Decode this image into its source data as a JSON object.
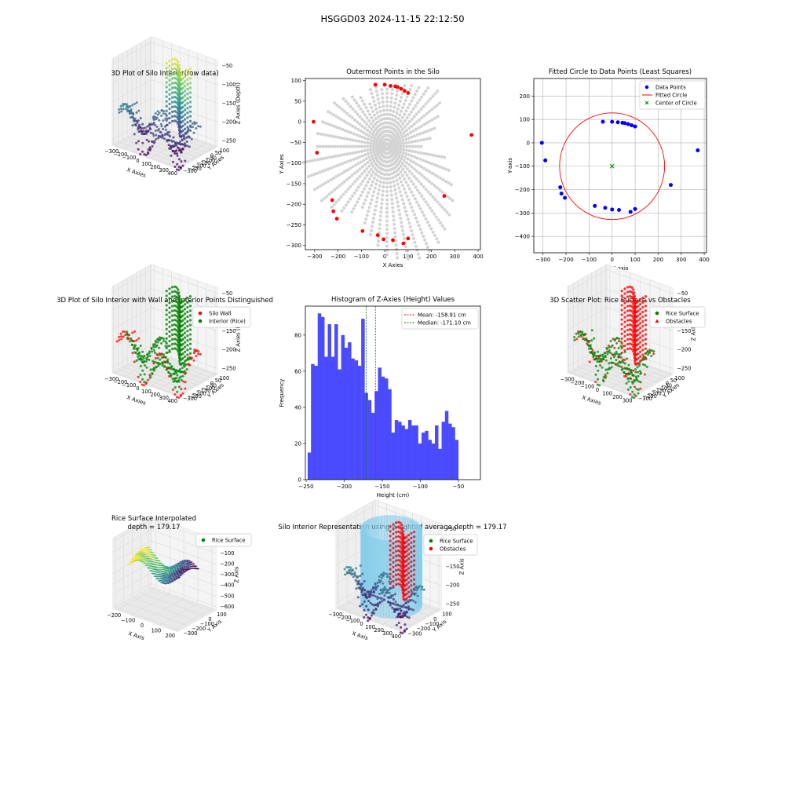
{
  "figure": {
    "suptitle": "HSGGD03 2024-11-15 22:12:50"
  },
  "colors": {
    "grid3d": "#e3e3e3",
    "pane": "#f2f2f2",
    "gray_pts": "#d3d3d3",
    "red": "#ff0000",
    "green": "#008000",
    "blue": "#0000ff",
    "hist": "#4a4aff",
    "skyblue": "#87ceeb"
  },
  "chart_data": [
    {
      "id": "p1",
      "type": "scatter3d",
      "title": "3D Plot of Silo Interior(row data)",
      "xlabel": "X Axies",
      "ylabel": "Y Axies",
      "zlabel": "Z Axies (Depth)",
      "xticks": [
        "−300",
        "−200",
        "−100",
        "0",
        "100",
        "200",
        "300",
        "400"
      ],
      "yticks": [
        "100",
        "50",
        "0",
        "−50",
        "−100",
        "−150",
        "−200",
        "−250",
        "−300"
      ],
      "zticks": [
        "−50",
        "−100",
        "−150",
        "−200",
        "−250"
      ],
      "colormap": "viridis"
    },
    {
      "id": "p2",
      "type": "scatter",
      "title": "Outermost Points in the Silo",
      "xlabel": "X Axies",
      "ylabel": "Y Axies",
      "xlim": [
        -340,
        410
      ],
      "ylim": [
        -310,
        105
      ],
      "xticks": [
        "−300",
        "−200",
        "−100",
        "0",
        "100",
        "200",
        "300",
        "400"
      ],
      "xtick_values": [
        -300,
        -200,
        -100,
        0,
        100,
        200,
        300,
        400
      ],
      "yticks": [
        "100",
        "50",
        "0",
        "−50",
        "−100",
        "−150",
        "−200",
        "−250",
        "−300"
      ],
      "ytick_values": [
        100,
        50,
        0,
        -50,
        -100,
        -150,
        -200,
        -250,
        -300
      ],
      "outer_points": [
        [
          -305,
          0
        ],
        [
          -290,
          -75
        ],
        [
          -225,
          -190
        ],
        [
          -220,
          -217
        ],
        [
          -205,
          -235
        ],
        [
          -95,
          -265
        ],
        [
          -30,
          -275
        ],
        [
          -5,
          -285
        ],
        [
          35,
          -287
        ],
        [
          80,
          -295
        ],
        [
          100,
          -283
        ],
        [
          255,
          -180
        ],
        [
          372,
          -32
        ],
        [
          -40,
          90
        ],
        [
          0,
          90
        ],
        [
          25,
          87
        ],
        [
          45,
          86
        ],
        [
          55,
          84
        ],
        [
          70,
          80
        ],
        [
          85,
          75
        ],
        [
          100,
          70
        ]
      ]
    },
    {
      "id": "p3",
      "type": "scatter",
      "title": "Fitted Circle to Data Points (Least Squares)",
      "xlabel": "X-axis",
      "ylabel": "Y-axis",
      "xlim": [
        -340,
        410
      ],
      "ylim": [
        -470,
        275
      ],
      "xticks": [
        "−300",
        "−200",
        "−100",
        "0",
        "100",
        "200",
        "300",
        "400"
      ],
      "xtick_values": [
        -300,
        -200,
        -100,
        0,
        100,
        200,
        300,
        400
      ],
      "yticks": [
        "200",
        "100",
        "0",
        "−100",
        "−200",
        "−300",
        "−400"
      ],
      "ytick_values": [
        200,
        100,
        0,
        -100,
        -200,
        -300,
        -400
      ],
      "legend": [
        "Data Points",
        "Fitted Circle",
        "Center of Circle"
      ],
      "legend_position": "upper right",
      "center": [
        0,
        -100
      ],
      "radius": 228,
      "points": [
        [
          -305,
          0
        ],
        [
          -290,
          -75
        ],
        [
          -225,
          -190
        ],
        [
          -220,
          -217
        ],
        [
          -205,
          -235
        ],
        [
          -75,
          -270
        ],
        [
          -30,
          -278
        ],
        [
          0,
          -285
        ],
        [
          30,
          -287
        ],
        [
          80,
          -295
        ],
        [
          100,
          -283
        ],
        [
          255,
          -180
        ],
        [
          372,
          -32
        ],
        [
          -40,
          90
        ],
        [
          0,
          90
        ],
        [
          25,
          88
        ],
        [
          45,
          86
        ],
        [
          55,
          84
        ],
        [
          70,
          80
        ],
        [
          85,
          75
        ],
        [
          100,
          70
        ]
      ]
    },
    {
      "id": "p4",
      "type": "scatter3d",
      "title": "3D Plot of Silo Interior with Wall and Interior Points Distinguished",
      "xlabel": "X Axies",
      "ylabel": "Y Axies",
      "zlabel": "Z Axies (Depth)",
      "xticks": [
        "−300",
        "−200",
        "−100",
        "0",
        "100",
        "200",
        "300",
        "400"
      ],
      "yticks": [
        "100",
        "50",
        "0",
        "−50",
        "−100",
        "−150",
        "−200",
        "−250",
        "−300"
      ],
      "zticks": [
        "−50",
        "−100",
        "−150",
        "−200",
        "−250"
      ],
      "legend": [
        "Silo Wall",
        "Interior (Rice)"
      ],
      "legend_position": "upper right"
    },
    {
      "id": "p5",
      "type": "bar",
      "title": "Histogram of Z-Axies (Height) Values",
      "xlabel": "Height (cm)",
      "ylabel": "Frequency",
      "xlim": [
        -251,
        -21
      ],
      "ylim": [
        0,
        96
      ],
      "xticks": [
        "−250",
        "−200",
        "−150",
        "−100",
        "−50"
      ],
      "xtick_values": [
        -250,
        -200,
        -150,
        -100,
        -50
      ],
      "yticks": [
        "0",
        "20",
        "40",
        "60",
        "80"
      ],
      "ytick_values": [
        0,
        20,
        40,
        60,
        80
      ],
      "bin_start": -248,
      "bin_width": 4.4,
      "values": [
        15,
        64,
        63,
        92,
        90,
        68,
        86,
        68,
        86,
        61,
        80,
        73,
        76,
        67,
        66,
        63,
        89,
        48,
        44,
        37,
        49,
        62,
        57,
        56,
        50,
        26,
        33,
        32,
        30,
        28,
        33,
        30,
        30,
        20,
        26,
        27,
        22,
        20,
        30,
        17,
        32,
        38,
        31,
        29,
        22
      ],
      "mean": -158.91,
      "median": -171.1,
      "legend": [
        "Mean: -158.91 cm",
        "Median: -171.10 cm"
      ],
      "legend_position": "upper right"
    },
    {
      "id": "p6",
      "type": "scatter3d",
      "title": "3D Scatter Plot: Rice Surface vs Obstacles",
      "xlabel": "X Axies",
      "ylabel": "Y Axies",
      "zlabel": "Z Axies",
      "xticks": [
        "−300",
        "−200",
        "−100",
        "0",
        "100",
        "200",
        "300"
      ],
      "yticks": [
        "100",
        "50",
        "0",
        "−50",
        "−100",
        "−150",
        "−200",
        "−250",
        "−300"
      ],
      "zticks": [
        "−50",
        "−100",
        "−150",
        "−200",
        "−250"
      ],
      "legend": [
        "Rice Surface",
        "Obstacles"
      ],
      "legend_position": "upper right"
    },
    {
      "id": "p7",
      "type": "surface3d",
      "title": "Rice Surface Interpolated",
      "subtitle": "depth = 179.17",
      "xlabel": "X Axis",
      "ylabel": "Y Axis",
      "zlabel": "Z Axis",
      "xticks": [
        "−200",
        "−100",
        "0",
        "100",
        "200"
      ],
      "yticks": [
        "100",
        "0",
        "−100",
        "−200",
        "−300"
      ],
      "zticks": [
        "0",
        "−100",
        "−200",
        "−300",
        "−400",
        "−500",
        "−600"
      ],
      "legend": [
        "Rice Surface"
      ],
      "legend_position": "upper right"
    },
    {
      "id": "p8",
      "type": "scatter3d",
      "title": "Silo Interior Representation using weighted average depth = 179.17",
      "xlabel": "X Axis",
      "ylabel": "Y Axis",
      "zlabel": "Z Axis",
      "xticks": [
        "−300",
        "−200",
        "−100",
        "0",
        "100",
        "200",
        "300",
        "400"
      ],
      "yticks": [
        "100",
        "0",
        "−100",
        "−200",
        "−300"
      ],
      "zticks": [
        "−50",
        "−100",
        "−150",
        "−200",
        "−250"
      ],
      "legend": [
        "Rice Surface",
        "Obstacles"
      ],
      "legend_position": "upper center"
    }
  ]
}
